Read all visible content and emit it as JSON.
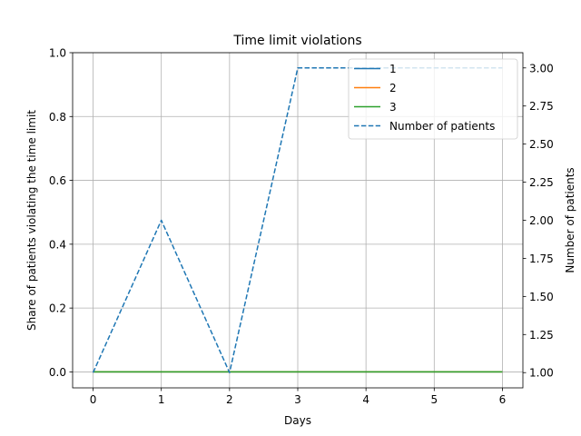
{
  "chart_data": {
    "type": "line",
    "title": "Time limit violations",
    "xlabel": "Days",
    "ylabel": "Share of patients violating the time limit",
    "ylabel_right": "Number of patients",
    "x": [
      0,
      1,
      2,
      3,
      4,
      5,
      6
    ],
    "xlim": [
      -0.3,
      6.3
    ],
    "ylim": [
      -0.05,
      1.0
    ],
    "ylim_right": [
      0.9,
      3.1
    ],
    "xticks": [
      0,
      1,
      2,
      3,
      4,
      5,
      6
    ],
    "yticks": [
      0.0,
      0.2,
      0.4,
      0.6,
      0.8,
      1.0
    ],
    "yticks_right": [
      1.0,
      1.25,
      1.5,
      1.75,
      2.0,
      2.25,
      2.5,
      2.75,
      3.0
    ],
    "grid": true,
    "legend_position": "top-right",
    "series": [
      {
        "name": "1",
        "axis": "left",
        "style": "solid",
        "color": "#1f77b4",
        "values": [
          0,
          0,
          0,
          0,
          0,
          0,
          0
        ]
      },
      {
        "name": "2",
        "axis": "left",
        "style": "solid",
        "color": "#ff7f0e",
        "values": [
          0,
          0,
          0,
          0,
          0,
          0,
          0
        ]
      },
      {
        "name": "3",
        "axis": "left",
        "style": "solid",
        "color": "#2ca02c",
        "values": [
          0,
          0,
          0,
          0,
          0,
          0,
          0
        ]
      },
      {
        "name": "Number of patients",
        "axis": "right",
        "style": "dashed",
        "color": "#1f77b4",
        "values": [
          1,
          2,
          1,
          3,
          3,
          3,
          3
        ]
      }
    ]
  }
}
